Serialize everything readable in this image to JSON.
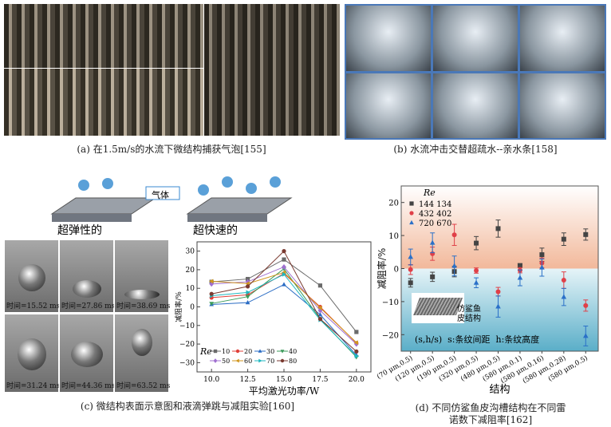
{
  "panels": {
    "a": {
      "caption": "(a) 在1.5m/s的水流下微结构捕获气泡[155]"
    },
    "b": {
      "caption": "(b) 水流冲击交替超疏水--亲水条[158]"
    },
    "c": {
      "caption": "(c) 微结构表面示意图和液滴弹跳与减阻实验[160]",
      "gas_label": "气体",
      "left_label": "超弹性的",
      "right_label": "超快速的",
      "times": [
        "时间=15.52 ms",
        "时间=27.86 ms",
        "时间=38.69 ms",
        "时间=31.24 ms",
        "时间=44.36 ms",
        "时间=63.52 ms"
      ]
    },
    "d": {
      "caption_line1": "(d) 不同仿鲨鱼皮沟槽结构在不同雷",
      "caption_line2": "诺数下减阻率[162]",
      "inset_label_1": "仿鲨鱼",
      "inset_label_2": "皮结构",
      "note": "(s,h/s)  s:条纹间距  h:条纹高度"
    }
  },
  "chart_data": [
    {
      "type": "line",
      "xlabel": "平均激光功率/W",
      "ylabel": "减阻率/%",
      "x": [
        10.0,
        12.5,
        15.0,
        17.5,
        20.0
      ],
      "xticks": [
        "10.0",
        "12.5",
        "15.0",
        "17.5",
        "20.0"
      ],
      "yticks": [
        "-30",
        "-20",
        "-10",
        "0",
        "10",
        "20",
        "30"
      ],
      "xlim": [
        9,
        21
      ],
      "ylim": [
        -35,
        35
      ],
      "legend_title": "Re",
      "legend_placement": "bottom-left",
      "series": [
        {
          "name": "10",
          "color": "#6a6a6a",
          "marker": "square",
          "values": [
            13.5,
            15,
            25.5,
            11.5,
            -13.5
          ]
        },
        {
          "name": "20",
          "color": "#e0403a",
          "marker": "circle",
          "values": [
            5,
            6.5,
            18,
            0,
            -19.5
          ]
        },
        {
          "name": "30",
          "color": "#2a6cc4",
          "marker": "triangle",
          "values": [
            1.3,
            2.3,
            12,
            -4.2,
            -26
          ]
        },
        {
          "name": "40",
          "color": "#3a9a5a",
          "marker": "triangle-down",
          "values": [
            1.8,
            5.5,
            20.5,
            -6.5,
            -27
          ]
        },
        {
          "name": "50",
          "color": "#a070d0",
          "marker": "diamond",
          "values": [
            12.3,
            13.5,
            21.5,
            -2,
            -20
          ]
        },
        {
          "name": "60",
          "color": "#d0961e",
          "marker": "triangle-left",
          "values": [
            13.8,
            12.5,
            18.5,
            -0.5,
            -19.2
          ]
        },
        {
          "name": "70",
          "color": "#20b8c0",
          "marker": "triangle-right",
          "values": [
            6,
            7.8,
            17.5,
            -7,
            -26.5
          ]
        },
        {
          "name": "80",
          "color": "#7a3a30",
          "marker": "hexagon",
          "values": [
            7,
            11,
            30,
            -6.5,
            -24
          ]
        }
      ]
    },
    {
      "type": "scatter",
      "xlabel": "结构",
      "ylabel": "减阻率/%",
      "ylim": [
        -25,
        25
      ],
      "yticks": [
        "-20",
        "-10",
        "0",
        "10",
        "20"
      ],
      "legend_title": "Re",
      "legend_placement": "top-left",
      "categories": [
        "(70 μm,0.5)",
        "(120 μm,0.5)",
        "(190 μm,0.5)",
        "(320 μm,0.5)",
        "(480 μm,0.5)",
        "(580 μm,0.1)",
        "(580 μm,0.16)",
        "(580 μm,0.28)",
        "(580 μm,0.5)"
      ],
      "series": [
        {
          "name": "144 134",
          "color": "#444444",
          "marker": "square",
          "values": [
            -4.3,
            -2.5,
            -0.9,
            7.7,
            12.1,
            0.9,
            4.2,
            8.9,
            10.3
          ],
          "errors": [
            1.3,
            1.4,
            1.6,
            2,
            2.6,
            0.6,
            2,
            1.9,
            1.7
          ]
        },
        {
          "name": "432 402",
          "color": "#e04048",
          "marker": "circle",
          "values": [
            -0.3,
            4.5,
            10.2,
            -0.6,
            -7,
            -0.5,
            1.7,
            -3.5,
            -11.2
          ],
          "errors": [
            1.5,
            2,
            3.2,
            0.8,
            1.3,
            0.8,
            1.5,
            2.5,
            1.7
          ]
        },
        {
          "name": "720 670",
          "color": "#2a70c8",
          "marker": "triangle",
          "values": [
            3.5,
            7.8,
            0.8,
            -4.3,
            -11.5,
            -2.8,
            0.3,
            -8.6,
            -20.4
          ],
          "errors": [
            2.4,
            3,
            3,
            1.5,
            3.2,
            2.4,
            2.6,
            2.6,
            3
          ]
        }
      ],
      "background": {
        "positive": "#f2b89a",
        "negative": "#5aaec8"
      }
    }
  ]
}
